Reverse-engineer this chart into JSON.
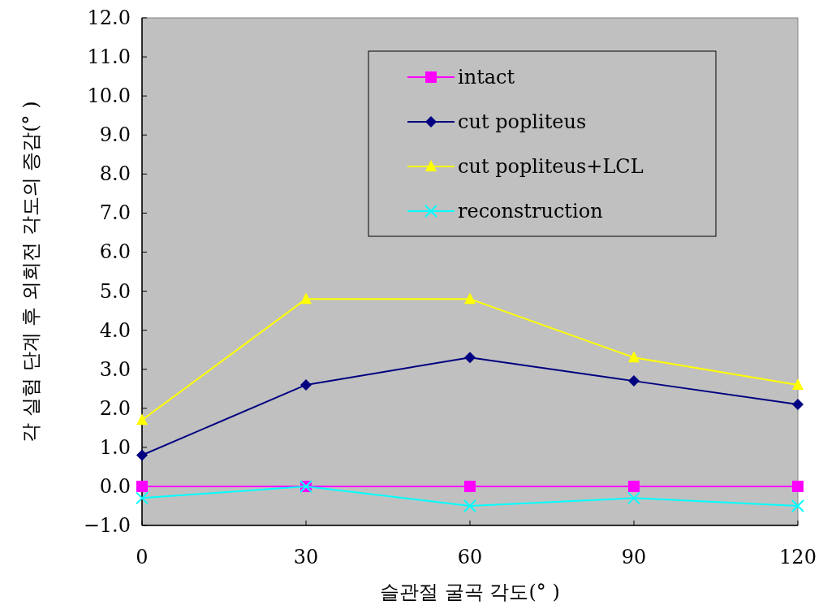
{
  "chart_data": {
    "type": "line",
    "xlabel": "슬관절 굴곡 각도(° )",
    "ylabel": "각 실험 단계 후 외회전 각도의 증감(° )",
    "x": [
      0,
      30,
      60,
      90,
      120
    ],
    "series": [
      {
        "name": "intact",
        "color": "#ff00ff",
        "marker": "square",
        "values": [
          0,
          0,
          0,
          0,
          0
        ]
      },
      {
        "name": "cut popliteus",
        "color": "#000080",
        "marker": "diamond",
        "values": [
          0.8,
          2.6,
          3.3,
          2.7,
          2.1
        ]
      },
      {
        "name": "cut popliteus+LCL",
        "color": "#ffff00",
        "marker": "triangle",
        "values": [
          1.7,
          4.8,
          4.8,
          3.3,
          2.6
        ]
      },
      {
        "name": "reconstruction",
        "color": "#00ffff",
        "marker": "cross",
        "values": [
          -0.3,
          0,
          -0.5,
          -0.3,
          -0.5
        ]
      }
    ],
    "xlim": [
      0,
      120
    ],
    "xticks": [
      0,
      30,
      60,
      90,
      120
    ],
    "ylim": [
      -1,
      12
    ],
    "yticks": [
      {
        "value": -1,
        "label": "−1.0"
      },
      {
        "value": 0,
        "label": "0.0"
      },
      {
        "value": 1,
        "label": "1.0"
      },
      {
        "value": 2,
        "label": "2.0"
      },
      {
        "value": 3,
        "label": "3.0"
      },
      {
        "value": 4,
        "label": "4.0"
      },
      {
        "value": 5,
        "label": "5.0"
      },
      {
        "value": 6,
        "label": "6.0"
      },
      {
        "value": 7,
        "label": "7.0"
      },
      {
        "value": 8,
        "label": "8.0"
      },
      {
        "value": 9,
        "label": "9.0"
      },
      {
        "value": 10,
        "label": "10.0"
      },
      {
        "value": 11,
        "label": "11.0"
      },
      {
        "value": 12,
        "label": "12.0"
      }
    ],
    "grid": false,
    "legend": "top right",
    "line_style": "solid"
  }
}
